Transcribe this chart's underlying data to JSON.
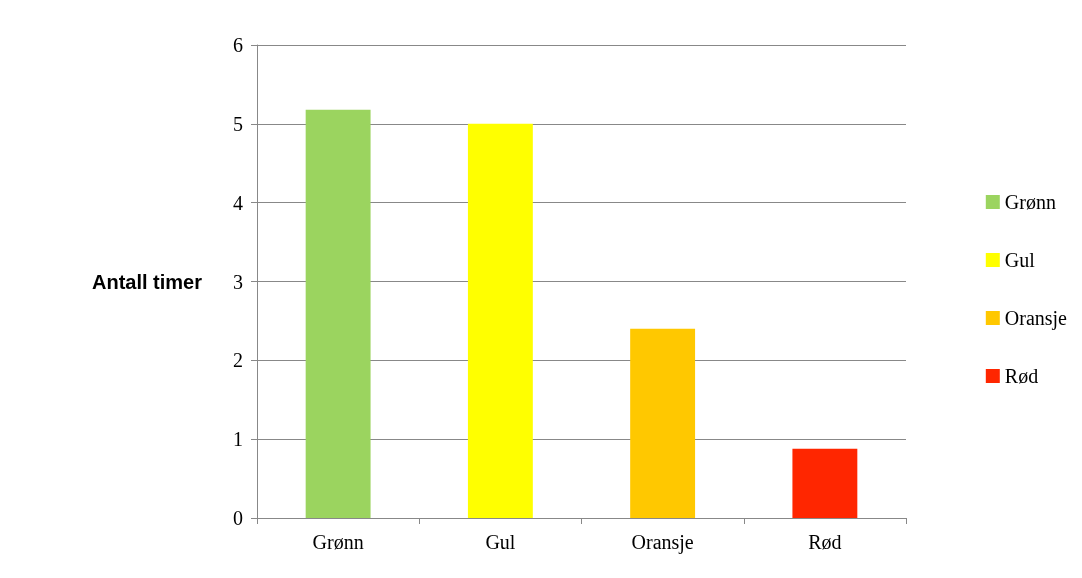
{
  "chart_data": {
    "type": "bar",
    "ylabel": "Antall timer",
    "categories": [
      "Grønn",
      "Gul",
      "Oransje",
      "Rød"
    ],
    "series": [
      {
        "name": "Grønn",
        "color": "#9bd45f",
        "values": [
          5.18,
          null,
          null,
          null
        ]
      },
      {
        "name": "Gul",
        "color": "#ffff00",
        "values": [
          null,
          5.0,
          null,
          null
        ]
      },
      {
        "name": "Oransje",
        "color": "#ffc800",
        "values": [
          null,
          null,
          2.4,
          null
        ]
      },
      {
        "name": "Rød",
        "color": "#ff2600",
        "values": [
          null,
          null,
          null,
          0.88
        ]
      }
    ],
    "ylim": [
      0,
      6
    ],
    "yticks": [
      0,
      1,
      2,
      3,
      4,
      5,
      6
    ],
    "grid": "y",
    "legend": "right"
  }
}
